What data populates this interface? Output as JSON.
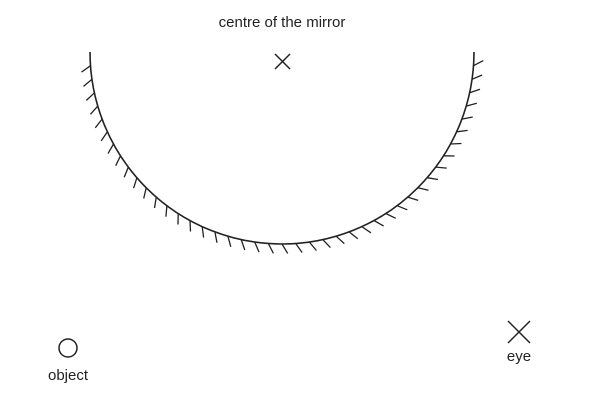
{
  "labels": {
    "centre": "centre of the mirror",
    "object": "object",
    "eye": "eye"
  },
  "mirror": {
    "type": "concave",
    "shape": "semicircle",
    "reflecting_side": "inner",
    "hatching_side": "outer"
  },
  "colors": {
    "ink": "#222222",
    "background": "#ffffff"
  },
  "icons": {
    "centre_marker": "cross",
    "object_marker": "circle",
    "eye_marker": "cross"
  }
}
